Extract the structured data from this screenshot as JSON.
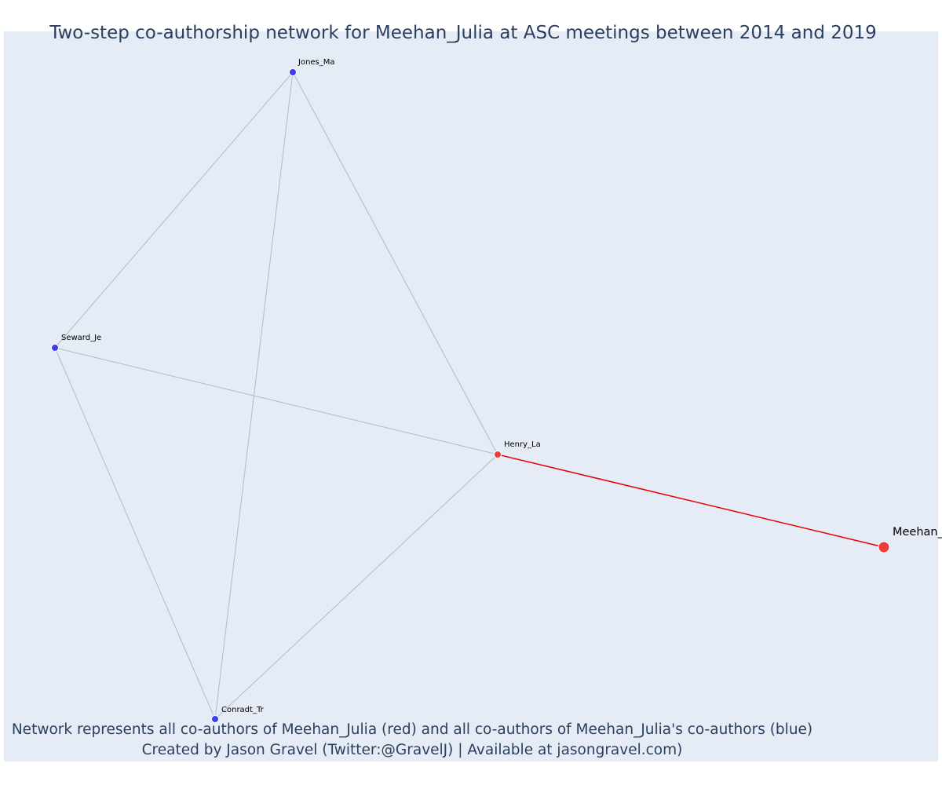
{
  "title": "Two-step co-authorship network for Meehan_Julia at ASC meetings between 2014 and 2019",
  "caption": {
    "line1": "Network represents all co-authors of Meehan_Julia (red) and all co-authors of Meehan_Julia's co-authors (blue)",
    "line2": "Created by Jason Gravel (Twitter:@GravelJ) | Available at jasongravel.com)"
  },
  "colors": {
    "plot_background": "#e5ecf6",
    "direct_coauthor": "#ef3b3b",
    "second_step_coauthor": "#3b3bef",
    "direct_edge": "#e80000",
    "other_edge": "#b3b8c8",
    "title_text": "#2a3f5f"
  },
  "nodes": [
    {
      "id": "Meehan",
      "label": "Meehan_",
      "group": "focal"
    },
    {
      "id": "Henry_La",
      "label": "Henry_La",
      "group": "direct"
    },
    {
      "id": "Jones_Ma",
      "label": "Jones_Ma",
      "group": "second"
    },
    {
      "id": "Seward_Je",
      "label": "Seward_Je",
      "group": "second"
    },
    {
      "id": "Conradt_Tr",
      "label": "Conradt_Tr",
      "group": "second"
    }
  ],
  "edges": [
    {
      "source": "Meehan",
      "target": "Henry_La",
      "type": "direct"
    },
    {
      "source": "Henry_La",
      "target": "Jones_Ma",
      "type": "other"
    },
    {
      "source": "Henry_La",
      "target": "Seward_Je",
      "type": "other"
    },
    {
      "source": "Henry_La",
      "target": "Conradt_Tr",
      "type": "other"
    },
    {
      "source": "Jones_Ma",
      "target": "Seward_Je",
      "type": "other"
    },
    {
      "source": "Jones_Ma",
      "target": "Conradt_Tr",
      "type": "other"
    },
    {
      "source": "Seward_Je",
      "target": "Conradt_Tr",
      "type": "other"
    }
  ]
}
